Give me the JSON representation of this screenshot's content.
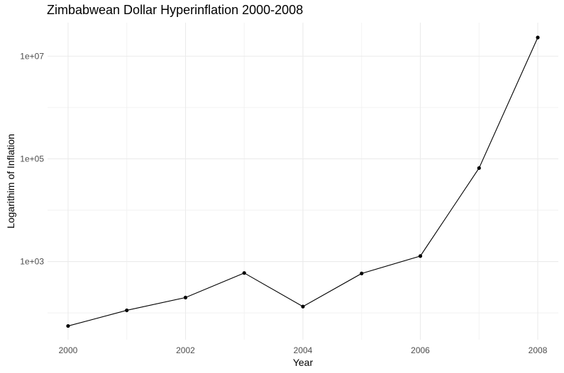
{
  "chart_data": {
    "type": "line",
    "title": "Zimbabwean Dollar Hyperinflation 2000-2008",
    "xlabel": "Year",
    "ylabel": "Logarithim of Inflation",
    "y_scale": "log10",
    "x": [
      2000,
      2001,
      2002,
      2003,
      2004,
      2005,
      2006,
      2007,
      2008
    ],
    "series": [
      {
        "values": [
          55.6,
          112.1,
          198.9,
          598.8,
          132.8,
          585.8,
          1281.1,
          66212.3,
          23100000
        ]
      }
    ],
    "x_ticks": [
      2000,
      2002,
      2004,
      2006,
      2008
    ],
    "x_tick_labels": [
      "2000",
      "2002",
      "2004",
      "2006",
      "2008"
    ],
    "y_ticks": [
      1000,
      100000,
      10000000
    ],
    "y_tick_labels": [
      "1e+03",
      "1e+05",
      "1e+07"
    ],
    "xlim": [
      1999.65,
      2008.35
    ],
    "ylim": [
      30,
      45000000
    ],
    "grid": true,
    "legend": "none",
    "line_color": "#000000",
    "point_color": "#000000",
    "grid_major_color": "#ebebeb",
    "grid_minor_color": "#f2f2f2"
  }
}
